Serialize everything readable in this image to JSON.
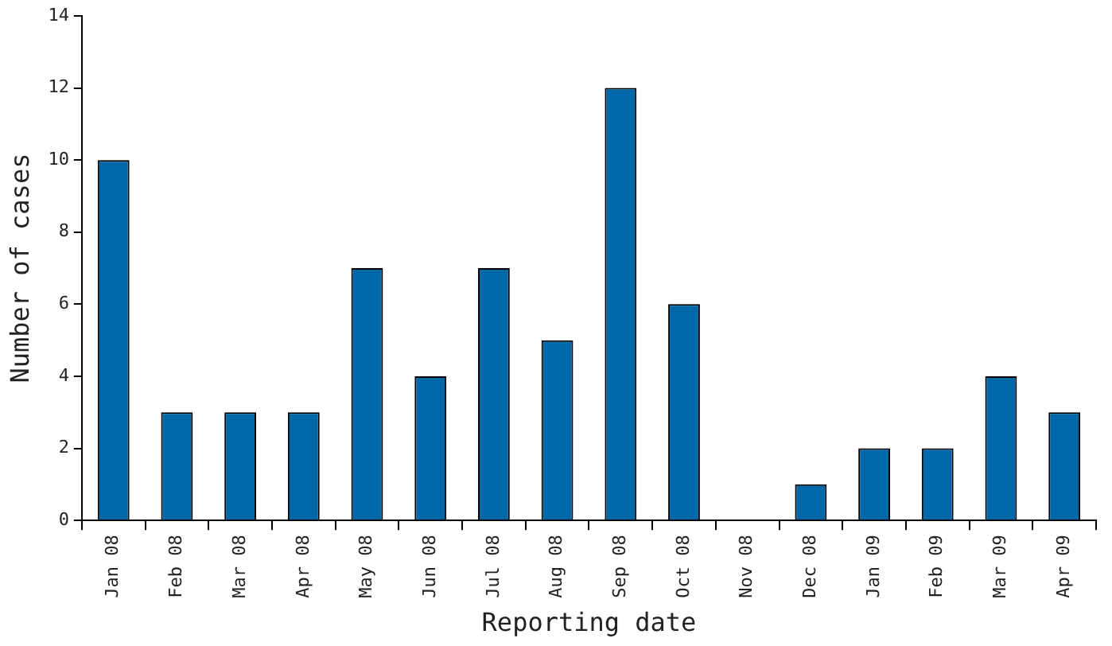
{
  "chart_data": {
    "type": "bar",
    "xlabel": "Reporting date",
    "ylabel": "Number of cases",
    "categories": [
      "Jan 08",
      "Feb 08",
      "Mar 08",
      "Apr 08",
      "May 08",
      "Jun 08",
      "Jul 08",
      "Aug 08",
      "Sep 08",
      "Oct 08",
      "Nov 08",
      "Dec 08",
      "Jan 09",
      "Feb 09",
      "Mar 09",
      "Apr 09"
    ],
    "values": [
      10,
      3,
      3,
      3,
      7,
      4,
      7,
      5,
      12,
      6,
      0,
      1,
      2,
      2,
      4,
      3
    ],
    "color": "#0068a8",
    "ylim": [
      0,
      14
    ],
    "yticks": [
      0,
      2,
      4,
      6,
      8,
      10,
      12,
      14
    ],
    "grid": false,
    "legend": false
  }
}
